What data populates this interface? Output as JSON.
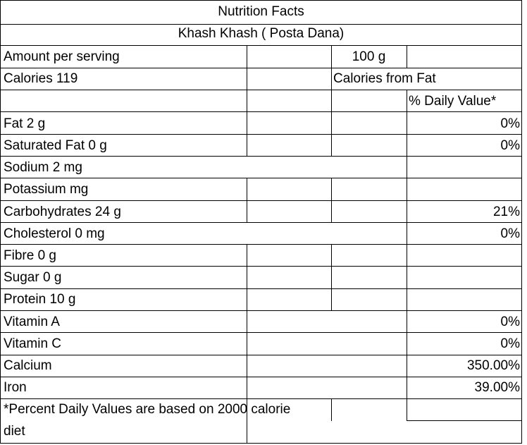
{
  "header": {
    "title": "Nutrition Facts",
    "product": "Khash Khash ( Posta Dana)"
  },
  "serving": {
    "label": "Amount per serving",
    "size": "100 g"
  },
  "calories": {
    "label": "Calories 119",
    "from_fat_label": "Calories from Fat"
  },
  "daily_value_header": "% Daily Value*",
  "nutrients": [
    {
      "label": "Fat  2  g",
      "dv": "0%"
    },
    {
      "label": "Saturated Fat 0 g",
      "dv": "0%"
    },
    {
      "label": "Sodium  2 mg",
      "dv": ""
    },
    {
      "label": "Potassium  mg",
      "dv": ""
    },
    {
      "label": "Carbohydrates 24 g",
      "dv": "21%"
    },
    {
      "label": "Cholesterol 0 mg",
      "dv": "0%"
    },
    {
      "label": "Fibre 0  g",
      "dv": ""
    },
    {
      "label": "Sugar 0  g",
      "dv": ""
    },
    {
      "label": "Protein 10 g",
      "dv": ""
    },
    {
      "label": "Vitamin A",
      "dv": "0%"
    },
    {
      "label": "Vitamin C",
      "dv": "0%"
    },
    {
      "label": "Calcium",
      "dv": "350.00%"
    },
    {
      "label": "Iron",
      "dv": "39.00%"
    }
  ],
  "footnote": {
    "line1": "*Percent Daily Values are based on 2000 calorie",
    "line2": "diet"
  }
}
